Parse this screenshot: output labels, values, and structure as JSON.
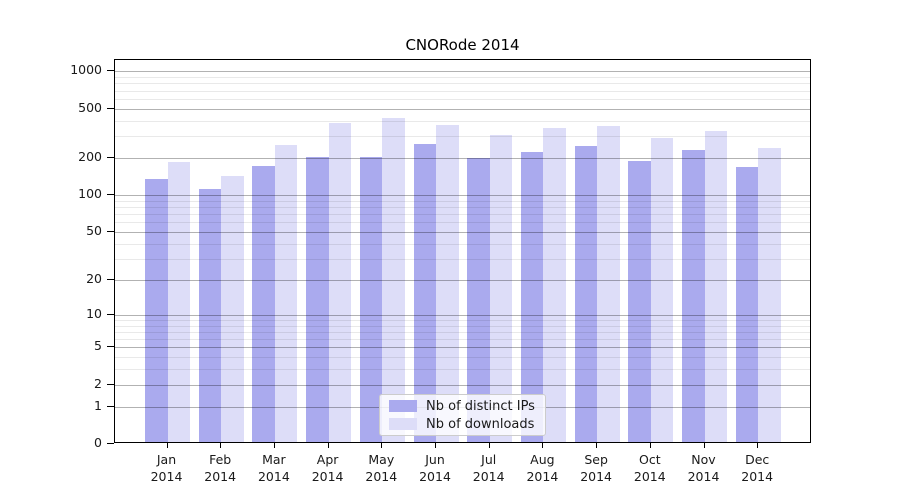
{
  "title": "CNORode 2014",
  "colors": {
    "ips_bar": "#aaaaee",
    "downloads_bar": "#ddddf8",
    "major_grid": "rgba(0,0,0,0.30)",
    "minor_grid": "rgba(0,0,0,0.085)",
    "axis": "#000000"
  },
  "x_axis": {
    "months": [
      "Jan",
      "Feb",
      "Mar",
      "Apr",
      "May",
      "Jun",
      "Jul",
      "Aug",
      "Sep",
      "Oct",
      "Nov",
      "Dec"
    ],
    "year": "2014"
  },
  "y_axis": {
    "tick_values": [
      0,
      1,
      2,
      5,
      10,
      20,
      50,
      100,
      200,
      500,
      1000
    ],
    "tick_labels": [
      "0",
      "1",
      "2",
      "5",
      "10",
      "20",
      "50",
      "100",
      "200",
      "500",
      "1000"
    ]
  },
  "legend": {
    "items": [
      {
        "label": "Nb of distinct IPs",
        "swatch": "#aaaaee"
      },
      {
        "label": "Nb of downloads",
        "swatch": "#ddddf8"
      }
    ]
  },
  "chart_data": {
    "type": "bar",
    "title": "CNORode 2014",
    "categories": [
      "Jan 2014",
      "Feb 2014",
      "Mar 2014",
      "Apr 2014",
      "May 2014",
      "Jun 2014",
      "Jul 2014",
      "Aug 2014",
      "Sep 2014",
      "Oct 2014",
      "Nov 2014",
      "Dec 2014"
    ],
    "series": [
      {
        "name": "Nb of distinct IPs",
        "color": "#aaaaee",
        "values": [
          130,
          107,
          165,
          195,
          198,
          248,
          194,
          216,
          242,
          181,
          223,
          164
        ]
      },
      {
        "name": "Nb of downloads",
        "color": "#ddddf8",
        "values": [
          179,
          138,
          245,
          371,
          407,
          354,
          298,
          338,
          348,
          280,
          319,
          230
        ]
      }
    ],
    "yscale": "log10(1+x)",
    "yticks": [
      0,
      1,
      2,
      5,
      10,
      20,
      50,
      100,
      200,
      500,
      1000
    ],
    "ylim": [
      0,
      1250
    ],
    "xlabel": "",
    "ylabel": "",
    "grid": true,
    "legend_position": "lower center"
  }
}
